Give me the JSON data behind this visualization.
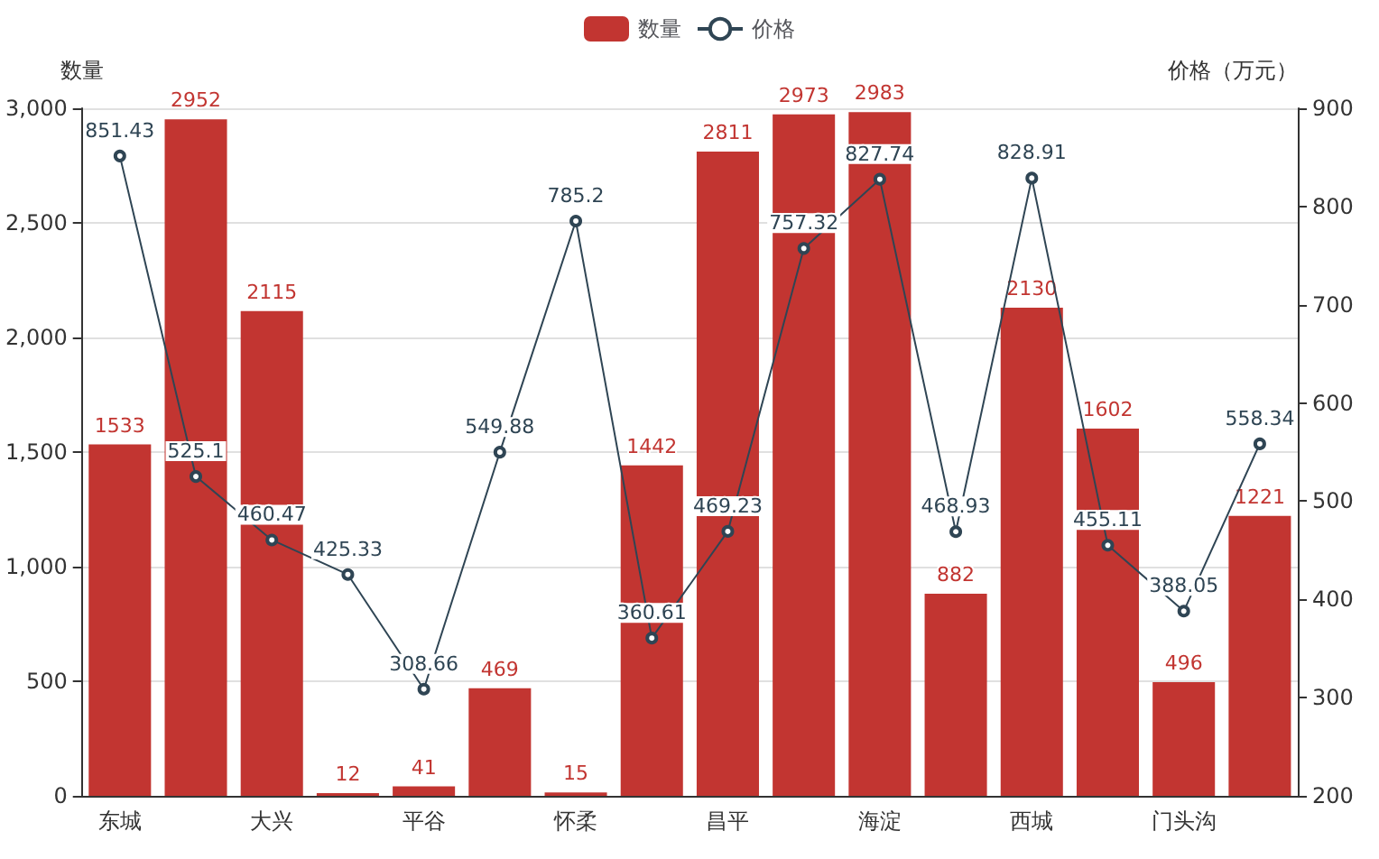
{
  "chart_data": {
    "type": "bar",
    "ylabel": "数量",
    "y2label": "价格（万元）",
    "categories": [
      "东城",
      null,
      "大兴",
      null,
      "平谷",
      null,
      "怀柔",
      null,
      "昌平",
      null,
      "海淀",
      null,
      "西城",
      null,
      "门头沟",
      null
    ],
    "series": [
      {
        "name": "数量",
        "color": "#c23531",
        "values": [
          1533,
          2952,
          2115,
          12,
          41,
          469,
          15,
          1442,
          2811,
          2973,
          2983,
          882,
          2130,
          1602,
          496,
          1221
        ]
      },
      {
        "name": "价格",
        "type": "line",
        "axis": "y2",
        "color": "#2f4554",
        "marker": "circle",
        "values": [
          851.43,
          525.1,
          460.47,
          425.33,
          308.66,
          549.88,
          785.2,
          360.61,
          469.23,
          757.32,
          827.74,
          468.93,
          828.91,
          455.11,
          388.05,
          558.34
        ]
      }
    ],
    "ylim": [
      0,
      3000
    ],
    "yticks": [
      0,
      500,
      {
        "value": 1000,
        "label": "1,000"
      },
      {
        "value": 1500,
        "label": "1,500"
      },
      {
        "value": 2000,
        "label": "2,000"
      },
      {
        "value": 2500,
        "label": "2,500"
      },
      {
        "value": 3000,
        "label": "3,000"
      }
    ],
    "y2lim": [
      200,
      900
    ],
    "y2ticks": [
      200,
      300,
      400,
      500,
      600,
      700,
      800,
      900
    ],
    "grid": "y",
    "legend": "top",
    "data_labels": true
  }
}
